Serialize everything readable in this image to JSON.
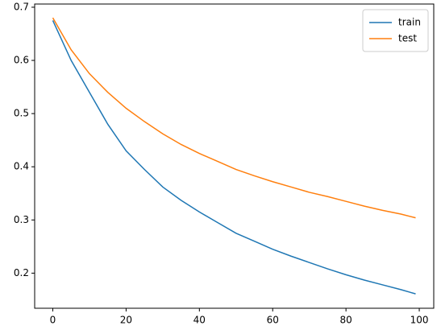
{
  "chart_data": {
    "type": "line",
    "x": [
      0,
      5,
      10,
      15,
      20,
      25,
      30,
      35,
      40,
      45,
      50,
      55,
      60,
      65,
      70,
      75,
      80,
      85,
      90,
      95,
      99
    ],
    "series": [
      {
        "name": "train",
        "color": "#1f77b4",
        "values": [
          0.675,
          0.6,
          0.54,
          0.48,
          0.43,
          0.395,
          0.362,
          0.337,
          0.315,
          0.295,
          0.275,
          0.26,
          0.245,
          0.232,
          0.22,
          0.208,
          0.197,
          0.187,
          0.178,
          0.169,
          0.161
        ]
      },
      {
        "name": "test",
        "color": "#ff7f0e",
        "values": [
          0.68,
          0.62,
          0.575,
          0.54,
          0.51,
          0.485,
          0.462,
          0.442,
          0.425,
          0.41,
          0.395,
          0.383,
          0.372,
          0.362,
          0.352,
          0.344,
          0.335,
          0.326,
          0.318,
          0.311,
          0.304
        ]
      }
    ],
    "xlim": [
      -4.95,
      103.95
    ],
    "xticks": [
      0,
      20,
      40,
      60,
      80,
      100
    ],
    "ylim": [
      0.134,
      0.706
    ],
    "yticks": [
      0.2,
      0.3,
      0.4,
      0.5,
      0.6,
      0.7
    ],
    "grid": false,
    "legend": "upper-right"
  }
}
